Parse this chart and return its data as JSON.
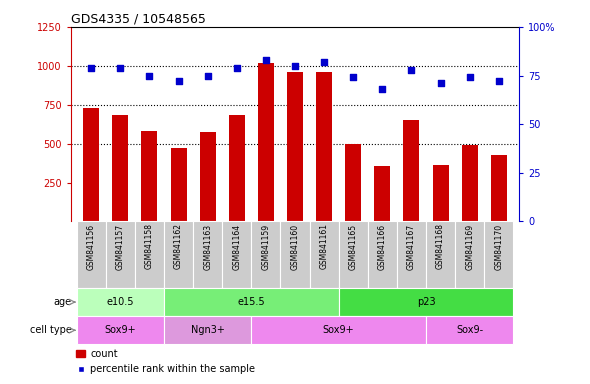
{
  "title": "GDS4335 / 10548565",
  "samples": [
    "GSM841156",
    "GSM841157",
    "GSM841158",
    "GSM841162",
    "GSM841163",
    "GSM841164",
    "GSM841159",
    "GSM841160",
    "GSM841161",
    "GSM841165",
    "GSM841166",
    "GSM841167",
    "GSM841168",
    "GSM841169",
    "GSM841170"
  ],
  "counts": [
    730,
    685,
    580,
    470,
    575,
    685,
    1020,
    960,
    960,
    495,
    355,
    650,
    360,
    490,
    430
  ],
  "percentile_ranks": [
    79,
    79,
    75,
    72,
    75,
    79,
    83,
    80,
    82,
    74,
    68,
    78,
    71,
    74,
    72
  ],
  "ylim_left": [
    0,
    1250
  ],
  "ylim_right": [
    0,
    100
  ],
  "yticks_left": [
    250,
    500,
    750,
    1000,
    1250
  ],
  "yticks_right": [
    0,
    25,
    50,
    75,
    100
  ],
  "bar_color": "#cc0000",
  "scatter_color": "#0000cc",
  "dotted_line_y": [
    500,
    750,
    1000
  ],
  "age_groups": [
    {
      "label": "e10.5",
      "start": 0,
      "end": 3,
      "color": "#bbffbb"
    },
    {
      "label": "e15.5",
      "start": 3,
      "end": 9,
      "color": "#77ee77"
    },
    {
      "label": "p23",
      "start": 9,
      "end": 15,
      "color": "#44dd44"
    }
  ],
  "cell_type_groups": [
    {
      "label": "Sox9+",
      "start": 0,
      "end": 3,
      "color": "#ee88ee"
    },
    {
      "label": "Ngn3+",
      "start": 3,
      "end": 6,
      "color": "#dd99dd"
    },
    {
      "label": "Sox9+",
      "start": 6,
      "end": 12,
      "color": "#ee88ee"
    },
    {
      "label": "Sox9-",
      "start": 12,
      "end": 15,
      "color": "#ee88ee"
    }
  ],
  "tick_color_left": "#cc0000",
  "tick_color_right": "#0000cc",
  "xticklabel_bg": "#cccccc",
  "plot_bg_color": "#ffffff"
}
